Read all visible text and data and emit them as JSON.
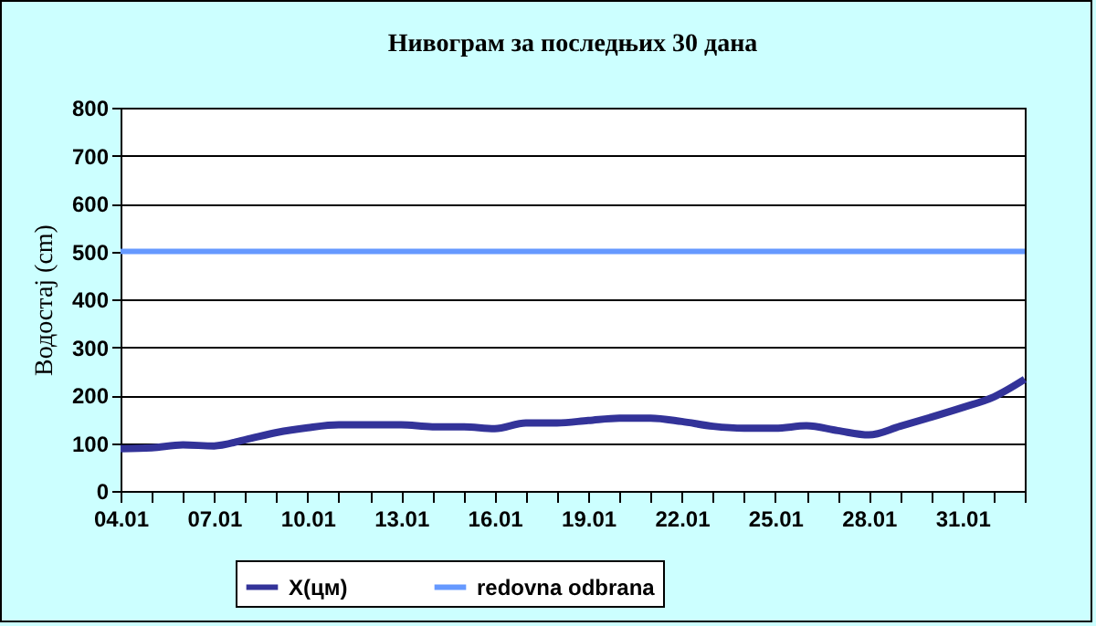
{
  "chart_data": {
    "type": "line",
    "title": "Нивограм за последњих 30 дана",
    "ylabel": "Водостај (cm)",
    "categories": [
      "04.01",
      null,
      null,
      "07.01",
      null,
      null,
      "10.01",
      null,
      null,
      "13.01",
      null,
      null,
      "16.01",
      null,
      null,
      "19.01",
      null,
      null,
      "22.01",
      null,
      null,
      "25.01",
      null,
      null,
      "28.01",
      null,
      null,
      "31.01",
      null,
      null
    ],
    "series": [
      {
        "name": "X(цм)",
        "color": "#333399",
        "values": [
          88,
          90,
          96,
          94,
          107,
          122,
          132,
          138,
          138,
          138,
          134,
          134,
          130,
          142,
          142,
          147,
          152,
          152,
          145,
          135,
          131,
          131,
          136,
          126,
          117,
          135,
          154,
          174,
          196,
          233
        ]
      }
    ],
    "ref_lines": [
      {
        "axis": "y",
        "value": 500,
        "label": "redovna odbrana",
        "color": "#6699ff"
      }
    ],
    "ylim": [
      0,
      800
    ],
    "yticks": [
      0,
      100,
      200,
      300,
      400,
      500,
      600,
      700,
      800
    ],
    "grid": "y",
    "legend": "bottom"
  }
}
